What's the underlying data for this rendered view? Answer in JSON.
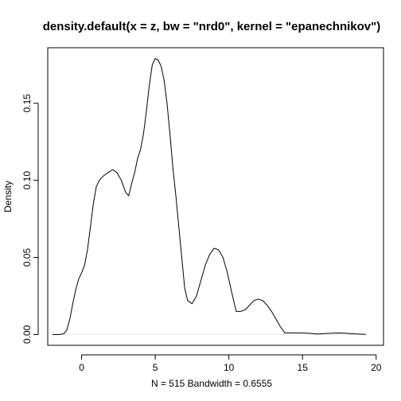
{
  "chart_data": {
    "type": "line",
    "title": "density.default(x = z, bw = \"nrd0\", kernel = \"epanechnikov\")",
    "xlabel": "N = 515   Bandwidth = 0.6555",
    "ylabel": "Density",
    "xlim": [
      -2.3,
      20.5
    ],
    "ylim": [
      -0.007,
      0.186
    ],
    "x_ticks": [
      0,
      5,
      10,
      15,
      20
    ],
    "x_tick_labels": [
      "0",
      "5",
      "10",
      "15",
      "20"
    ],
    "y_ticks": [
      0.0,
      0.05,
      0.1,
      0.15
    ],
    "y_tick_labels": [
      "0.00",
      "0.05",
      "0.10",
      "0.15"
    ],
    "grid": false,
    "series": [
      {
        "x": [
          -1.97,
          -1.5,
          -1.2,
          -1.0,
          -0.8,
          -0.6,
          -0.4,
          -0.2,
          0.0,
          0.2,
          0.4,
          0.6,
          0.8,
          1.0,
          1.2,
          1.5,
          1.8,
          2.1,
          2.4,
          2.7,
          3.0,
          3.2,
          3.4,
          3.6,
          3.8,
          4.0,
          4.2,
          4.4,
          4.6,
          4.8,
          5.0,
          5.2,
          5.4,
          5.6,
          5.8,
          6.0,
          6.2,
          6.4,
          6.6,
          6.8,
          7.0,
          7.2,
          7.5,
          7.8,
          8.1,
          8.4,
          8.7,
          9.0,
          9.3,
          9.6,
          9.9,
          10.2,
          10.5,
          10.8,
          11.1,
          11.4,
          11.7,
          12.0,
          12.3,
          12.6,
          12.9,
          13.2,
          13.5,
          13.8,
          14.1,
          14.5,
          15.0,
          15.5,
          16.0,
          16.5,
          17.0,
          17.5,
          18.0,
          18.5,
          19.0,
          19.3
        ],
        "y": [
          0.0,
          0.0,
          0.0005,
          0.003,
          0.01,
          0.02,
          0.029,
          0.036,
          0.04,
          0.045,
          0.055,
          0.07,
          0.085,
          0.096,
          0.1,
          0.103,
          0.105,
          0.107,
          0.105,
          0.1,
          0.092,
          0.09,
          0.098,
          0.105,
          0.114,
          0.12,
          0.13,
          0.145,
          0.162,
          0.175,
          0.179,
          0.178,
          0.174,
          0.165,
          0.15,
          0.13,
          0.108,
          0.09,
          0.07,
          0.05,
          0.03,
          0.022,
          0.02,
          0.025,
          0.035,
          0.045,
          0.052,
          0.056,
          0.055,
          0.05,
          0.04,
          0.027,
          0.015,
          0.015,
          0.016,
          0.019,
          0.022,
          0.023,
          0.022,
          0.019,
          0.015,
          0.01,
          0.005,
          0.001,
          0.001,
          0.001,
          0.001,
          0.0008,
          0.0003,
          0.0006,
          0.0009,
          0.001,
          0.0008,
          0.0004,
          0.0002,
          0.0001
        ]
      }
    ]
  }
}
